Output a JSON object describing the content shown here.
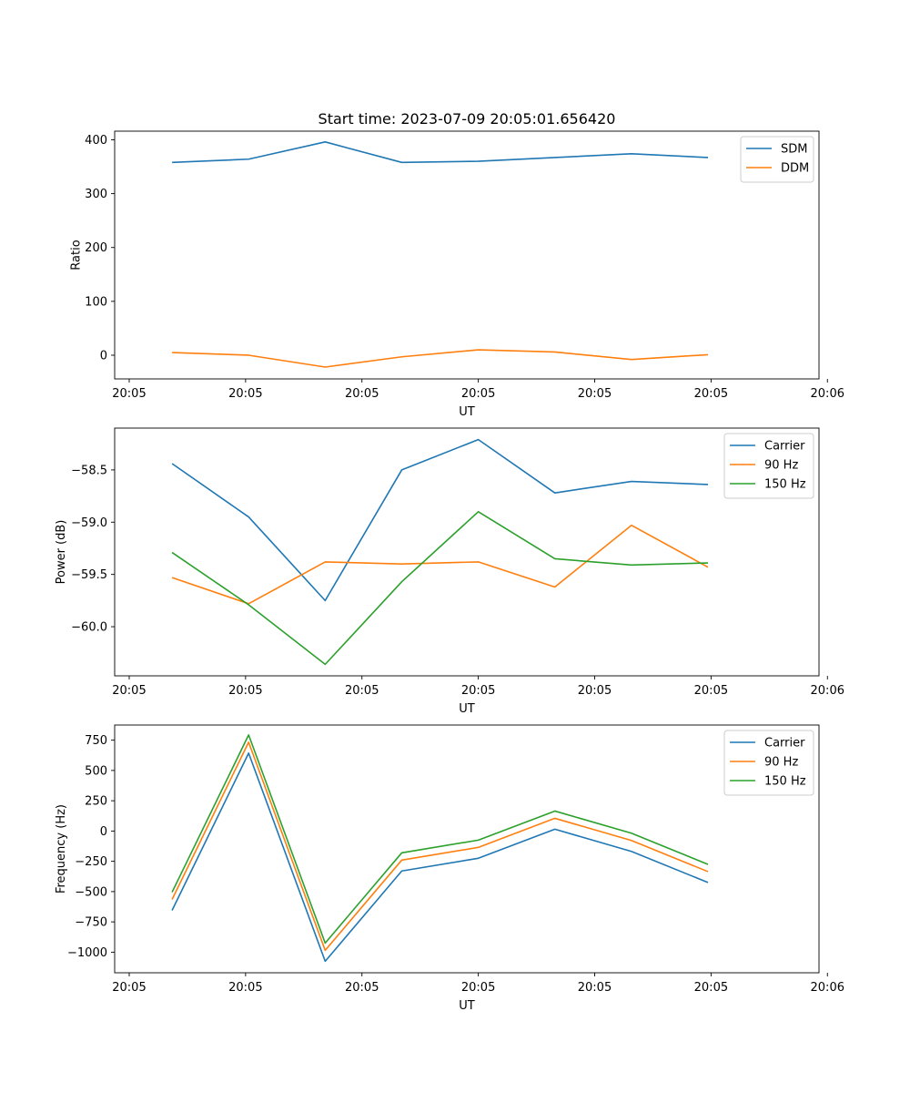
{
  "title": "Start time: 2023-07-09 20:05:01.656420",
  "colors": {
    "blue": "#1f77b4",
    "orange": "#ff7f0e",
    "green": "#2ca02c"
  },
  "chart_data": [
    {
      "type": "line",
      "title": "Start time: 2023-07-09 20:05:01.656420",
      "xlabel": "UT",
      "ylabel": "Ratio",
      "x": [
        0,
        1,
        2,
        3,
        4,
        5,
        6,
        7
      ],
      "xlim": [
        -0.75,
        8.45
      ],
      "x_ticks": [
        -0.56,
        0.96,
        2.48,
        4.0,
        5.52,
        7.04,
        8.56
      ],
      "x_tick_labels": [
        "20:05",
        "20:05",
        "20:05",
        "20:05",
        "20:05",
        "20:05",
        "20:06"
      ],
      "ylim": [
        -44,
        416
      ],
      "y_ticks": [
        0,
        100,
        200,
        300,
        400
      ],
      "y_tick_labels": [
        "0",
        "100",
        "200",
        "300",
        "400"
      ],
      "legend_position": "top-right",
      "series": [
        {
          "name": "SDM",
          "color": "#1f77b4",
          "values": [
            358,
            364,
            396,
            358,
            360,
            367,
            374,
            367
          ]
        },
        {
          "name": "DDM",
          "color": "#ff7f0e",
          "values": [
            5,
            0,
            -22,
            -3,
            10,
            6,
            -8,
            1
          ]
        }
      ]
    },
    {
      "type": "line",
      "xlabel": "UT",
      "ylabel": "Power (dB)",
      "x": [
        0,
        1,
        2,
        3,
        4,
        5,
        6,
        7
      ],
      "xlim": [
        -0.75,
        8.45
      ],
      "x_ticks": [
        -0.56,
        0.96,
        2.48,
        4.0,
        5.52,
        7.04,
        8.56
      ],
      "x_tick_labels": [
        "20:05",
        "20:05",
        "20:05",
        "20:05",
        "20:05",
        "20:05",
        "20:06"
      ],
      "ylim": [
        -60.47,
        -58.1
      ],
      "y_ticks": [
        -60.0,
        -59.5,
        -59.0,
        -58.5
      ],
      "y_tick_labels": [
        "−60.0",
        "−59.5",
        "−59.0",
        "−58.5"
      ],
      "legend_position": "top-right",
      "series": [
        {
          "name": "Carrier",
          "color": "#1f77b4",
          "values": [
            -58.44,
            -58.95,
            -59.75,
            -58.5,
            -58.21,
            -58.72,
            -58.61,
            -58.64
          ]
        },
        {
          "name": "90 Hz",
          "color": "#ff7f0e",
          "values": [
            -59.53,
            -59.78,
            -59.38,
            -59.4,
            -59.38,
            -59.62,
            -59.03,
            -59.43
          ]
        },
        {
          "name": "150 Hz",
          "color": "#2ca02c",
          "values": [
            -59.29,
            -59.79,
            -60.36,
            -59.57,
            -58.9,
            -59.35,
            -59.41,
            -59.39
          ]
        }
      ]
    },
    {
      "type": "line",
      "xlabel": "UT",
      "ylabel": "Frequency (Hz)",
      "x": [
        0,
        1,
        2,
        3,
        4,
        5,
        6,
        7
      ],
      "xlim": [
        -0.75,
        8.45
      ],
      "x_ticks": [
        -0.56,
        0.96,
        2.48,
        4.0,
        5.52,
        7.04,
        8.56
      ],
      "x_tick_labels": [
        "20:05",
        "20:05",
        "20:05",
        "20:05",
        "20:05",
        "20:05",
        "20:06"
      ],
      "ylim": [
        -1170,
        875
      ],
      "y_ticks": [
        -1000,
        -750,
        -500,
        -250,
        0,
        250,
        500,
        750
      ],
      "y_tick_labels": [
        "−1000",
        "−750",
        "−500",
        "−250",
        "0",
        "250",
        "500",
        "750"
      ],
      "legend_position": "top-right",
      "series": [
        {
          "name": "Carrier",
          "color": "#1f77b4",
          "values": [
            -655,
            643,
            -1075,
            -330,
            -225,
            15,
            -168,
            -425
          ]
        },
        {
          "name": "90 Hz",
          "color": "#ff7f0e",
          "values": [
            -565,
            733,
            -985,
            -240,
            -135,
            105,
            -78,
            -335
          ]
        },
        {
          "name": "150 Hz",
          "color": "#2ca02c",
          "values": [
            -505,
            793,
            -925,
            -180,
            -75,
            165,
            -18,
            -275
          ]
        }
      ]
    }
  ]
}
